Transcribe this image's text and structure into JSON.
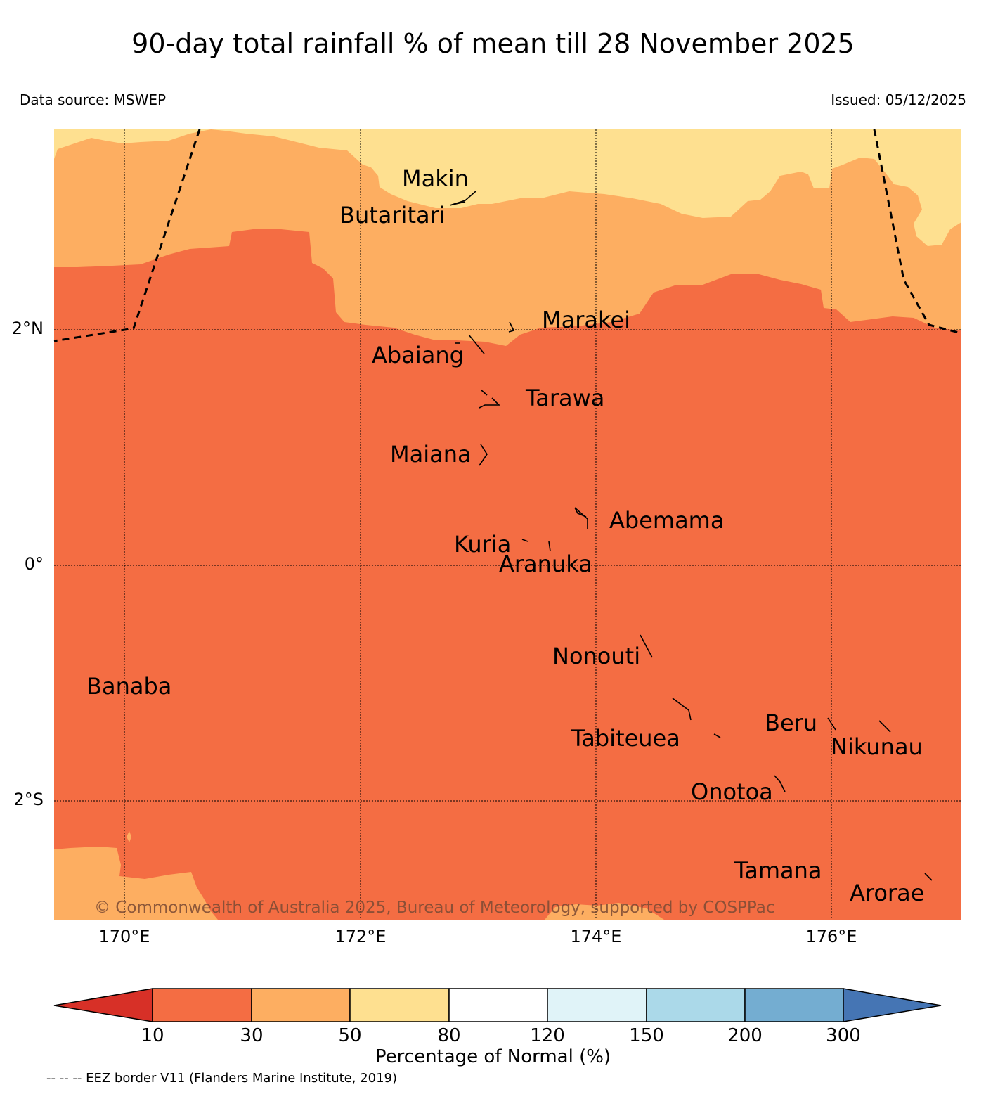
{
  "title": "90-day total rainfall % of mean till 28 November 2025",
  "data_source": "Data source: MSWEP",
  "issued": "Issued: 05/12/2025",
  "axes": {
    "lat_labels": [
      "2°N",
      "0°",
      "2°S"
    ],
    "lon_labels": [
      "170°E",
      "172°E",
      "174°E",
      "176°E"
    ]
  },
  "islands": [
    "Makin",
    "Butaritari",
    "Marakei",
    "Abaiang",
    "Tarawa",
    "Maiana",
    "Abemama",
    "Kuria",
    "Aranuka",
    "Nonouti",
    "Banaba",
    "Beru",
    "Tabiteuea",
    "Nikunau",
    "Onotoa",
    "Tamana",
    "Arorae"
  ],
  "copyright": "© Commonwealth of Australia 2025, Bureau of Meteorology, supported by COSPPac",
  "colorbar": {
    "label": "Percentage of Normal (%)",
    "ticks": [
      "10",
      "30",
      "50",
      "80",
      "120",
      "150",
      "200",
      "300"
    ],
    "colors": {
      "lt10": "#d73027",
      "c10_30": "#f46d43",
      "c30_50": "#fdae61",
      "c50_80": "#fee090",
      "c80_120": "#ffffff",
      "c120_150": "#e0f3f8",
      "c150_200": "#abd9e9",
      "c200_300": "#74add1",
      "gt300": "#4575b4"
    }
  },
  "footnote": "-- -- -- EEZ border V11 (Flanders Marine Institute, 2019)"
}
